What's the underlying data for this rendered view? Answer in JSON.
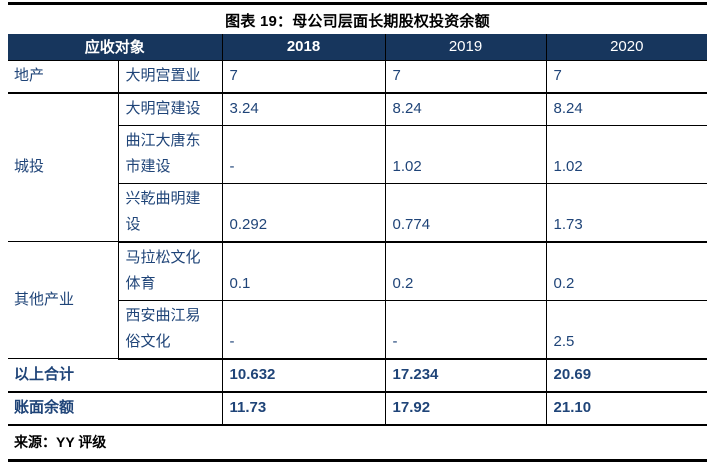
{
  "figure": {
    "title": "图表 19：母公司层面长期股权投资余额",
    "source": "来源：YY 评级"
  },
  "table": {
    "header": {
      "object_col": "应收对象",
      "years": [
        "2018",
        "2019",
        "2020"
      ]
    },
    "groups": [
      {
        "group": "地产",
        "rows": [
          {
            "name": "大明宫置业",
            "values": [
              "7",
              "7",
              "7"
            ]
          }
        ]
      },
      {
        "group": "城投",
        "rows": [
          {
            "name": "大明宫建设",
            "values": [
              "3.24",
              "8.24",
              "8.24"
            ]
          },
          {
            "name": "曲江大唐东市建设",
            "values": [
              "-",
              "1.02",
              "1.02"
            ]
          },
          {
            "name": "兴乾曲明建设",
            "values": [
              "0.292",
              "0.774",
              "1.73"
            ]
          }
        ]
      },
      {
        "group": "其他产业",
        "rows": [
          {
            "name": "马拉松文化体育",
            "values": [
              "0.1",
              "0.2",
              "0.2"
            ]
          },
          {
            "name": "西安曲江易俗文化",
            "values": [
              "-",
              "-",
              "2.5"
            ]
          }
        ]
      }
    ],
    "summary": [
      {
        "label": "以上合计",
        "values": [
          "10.632",
          "17.234",
          "20.69"
        ]
      },
      {
        "label": "账面余额",
        "values": [
          "11.73",
          "17.92",
          "21.10"
        ]
      }
    ],
    "colors": {
      "header_bg": "#17365d",
      "header_text": "#ffffff",
      "body_text": "#1f4478",
      "rule": "#000000"
    }
  }
}
